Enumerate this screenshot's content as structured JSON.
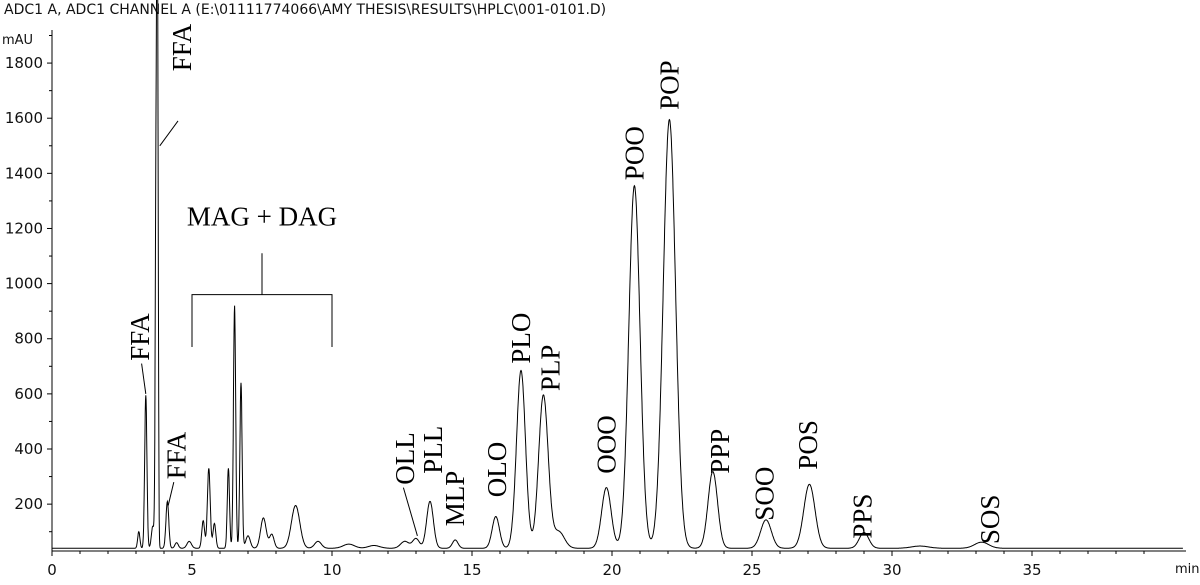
{
  "chart_data": {
    "type": "line",
    "title": "ADC1 A, ADC1 CHANNEL A (E:\\01111774066\\AMY THESIS\\RESULTS\\HPLC\\001-0101.D)",
    "ylabel": "mAU",
    "xlabel": "min",
    "xlim": [
      0,
      40.5
    ],
    "ylim": [
      30,
      1920
    ],
    "x_ticks": [
      0,
      5,
      10,
      15,
      20,
      25,
      30,
      35
    ],
    "y_ticks": [
      200,
      400,
      600,
      800,
      1000,
      1200,
      1400,
      1600,
      1800
    ],
    "grid": false,
    "baseline": 40,
    "peaks": [
      {
        "x": 3.1,
        "y": 60,
        "w": 0.04
      },
      {
        "x": 3.35,
        "y": 555,
        "w": 0.04
      },
      {
        "x": 3.6,
        "y": 80,
        "w": 0.05
      },
      {
        "x": 3.72,
        "y": 1480,
        "w": 0.03
      },
      {
        "x": 3.77,
        "y": 1855,
        "w": 0.025
      },
      {
        "x": 4.12,
        "y": 170,
        "w": 0.05
      },
      {
        "x": 4.45,
        "y": 20,
        "w": 0.06
      },
      {
        "x": 4.9,
        "y": 25,
        "w": 0.08
      },
      {
        "x": 5.4,
        "y": 100,
        "w": 0.05
      },
      {
        "x": 5.6,
        "y": 290,
        "w": 0.05
      },
      {
        "x": 5.8,
        "y": 90,
        "w": 0.05
      },
      {
        "x": 6.3,
        "y": 290,
        "w": 0.04
      },
      {
        "x": 6.52,
        "y": 880,
        "w": 0.04
      },
      {
        "x": 6.75,
        "y": 600,
        "w": 0.04
      },
      {
        "x": 7.0,
        "y": 45,
        "w": 0.08
      },
      {
        "x": 7.55,
        "y": 110,
        "w": 0.1
      },
      {
        "x": 7.85,
        "y": 50,
        "w": 0.08
      },
      {
        "x": 8.7,
        "y": 155,
        "w": 0.15
      },
      {
        "x": 9.5,
        "y": 25,
        "w": 0.12
      },
      {
        "x": 10.6,
        "y": 15,
        "w": 0.2
      },
      {
        "x": 11.5,
        "y": 10,
        "w": 0.2
      },
      {
        "x": 12.6,
        "y": 25,
        "w": 0.15
      },
      {
        "x": 13.0,
        "y": 35,
        "w": 0.12
      },
      {
        "x": 13.5,
        "y": 170,
        "w": 0.12
      },
      {
        "x": 14.4,
        "y": 30,
        "w": 0.1
      },
      {
        "x": 15.85,
        "y": 115,
        "w": 0.13
      },
      {
        "x": 16.75,
        "y": 645,
        "w": 0.16
      },
      {
        "x": 17.55,
        "y": 555,
        "w": 0.17
      },
      {
        "x": 18.1,
        "y": 60,
        "w": 0.2
      },
      {
        "x": 19.8,
        "y": 220,
        "w": 0.17
      },
      {
        "x": 20.8,
        "y": 1315,
        "w": 0.2
      },
      {
        "x": 22.05,
        "y": 1555,
        "w": 0.22
      },
      {
        "x": 23.6,
        "y": 278,
        "w": 0.17
      },
      {
        "x": 25.5,
        "y": 103,
        "w": 0.19
      },
      {
        "x": 27.05,
        "y": 232,
        "w": 0.2
      },
      {
        "x": 29.0,
        "y": 57,
        "w": 0.17
      },
      {
        "x": 31.0,
        "y": 8,
        "w": 0.3
      },
      {
        "x": 33.2,
        "y": 22,
        "w": 0.25
      }
    ],
    "annotations": [
      {
        "text": "FFA",
        "x": 3.15,
        "y": 720,
        "dir": "up"
      },
      {
        "text": "FFA",
        "x": 4.45,
        "y": 290,
        "dir": "up"
      },
      {
        "text": "FFA",
        "x": 4.65,
        "y": 1770,
        "dir": "up"
      },
      {
        "text": "MAG + DAG",
        "x": 7.5,
        "y": 1210,
        "dir": "flat"
      },
      {
        "text": "OLL",
        "x": 12.6,
        "y": 270,
        "dir": "up"
      },
      {
        "text": "PLL",
        "x": 13.6,
        "y": 310,
        "dir": "up"
      },
      {
        "text": "MLP",
        "x": 14.4,
        "y": 120,
        "dir": "up"
      },
      {
        "text": "OLO",
        "x": 15.9,
        "y": 225,
        "dir": "up"
      },
      {
        "text": "PLO",
        "x": 16.75,
        "y": 710,
        "dir": "up"
      },
      {
        "text": "PLP",
        "x": 17.8,
        "y": 610,
        "dir": "up"
      },
      {
        "text": "OOO",
        "x": 19.8,
        "y": 310,
        "dir": "up"
      },
      {
        "text": "POO",
        "x": 20.8,
        "y": 1375,
        "dir": "up"
      },
      {
        "text": "POP",
        "x": 22.05,
        "y": 1630,
        "dir": "up"
      },
      {
        "text": "PPP",
        "x": 23.85,
        "y": 310,
        "dir": "up"
      },
      {
        "text": "SOO",
        "x": 25.45,
        "y": 140,
        "dir": "up"
      },
      {
        "text": "POS",
        "x": 27.0,
        "y": 325,
        "dir": "up"
      },
      {
        "text": "PPS",
        "x": 28.95,
        "y": 75,
        "dir": "up"
      },
      {
        "text": "SOS",
        "x": 33.5,
        "y": 55,
        "dir": "up"
      }
    ]
  }
}
